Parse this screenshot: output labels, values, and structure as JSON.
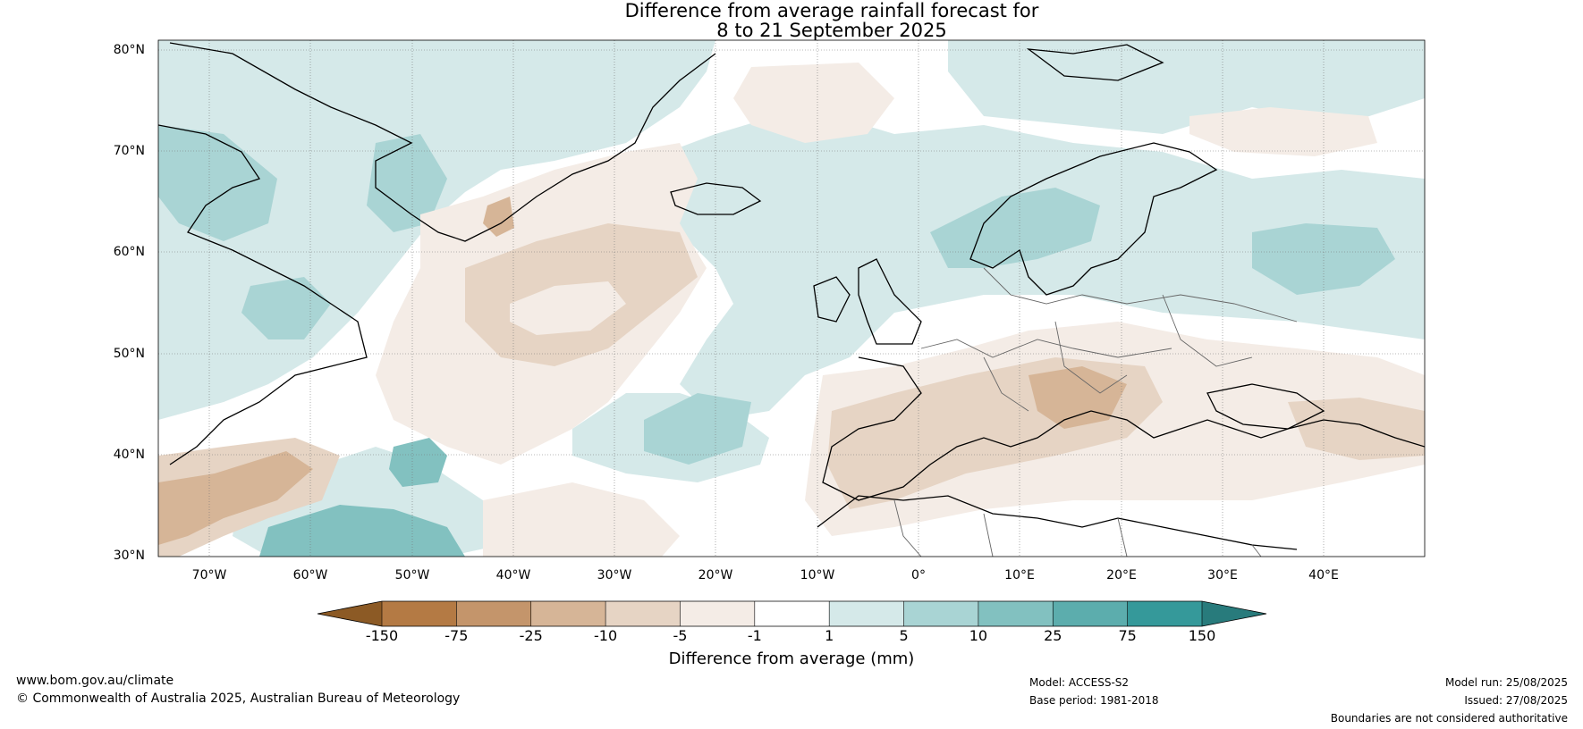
{
  "title": {
    "line1": "Difference from average rainfall forecast for",
    "line2": "8 to 21 September 2025"
  },
  "map": {
    "latitude_labels": [
      "80°N",
      "70°N",
      "60°N",
      "50°N",
      "40°N",
      "30°N"
    ],
    "longitude_labels": [
      "70°W",
      "60°W",
      "50°W",
      "40°W",
      "30°W",
      "20°W",
      "10°W",
      "0°",
      "10°E",
      "20°E",
      "30°E",
      "40°E"
    ],
    "extent": {
      "lon": [
        -75,
        50
      ],
      "lat": [
        30,
        81
      ]
    }
  },
  "colorbar": {
    "ticks": [
      "-150",
      "-75",
      "-25",
      "-10",
      "-5",
      "-1",
      "1",
      "5",
      "10",
      "25",
      "75",
      "150"
    ],
    "colors": [
      "#8c5a25",
      "#b47a44",
      "#c4956b",
      "#d6b597",
      "#e6d4c4",
      "#f4ece6",
      "#ffffff",
      "#d5e9e9",
      "#a9d4d4",
      "#82c1c0",
      "#5cadad",
      "#35999a",
      "#287b7c"
    ],
    "title": "Difference from average (mm)"
  },
  "footer": {
    "website": "www.bom.gov.au/climate",
    "copyright": "© Commonwealth of Australia 2025, Australian Bureau of Meteorology",
    "model": "Model: ACCESS-S2",
    "base_period": "Base period: 1981-2018",
    "model_run": "Model run: 25/08/2025",
    "issued": "Issued: 27/08/2025",
    "disclaimer": "Boundaries are not considered authoritative"
  }
}
